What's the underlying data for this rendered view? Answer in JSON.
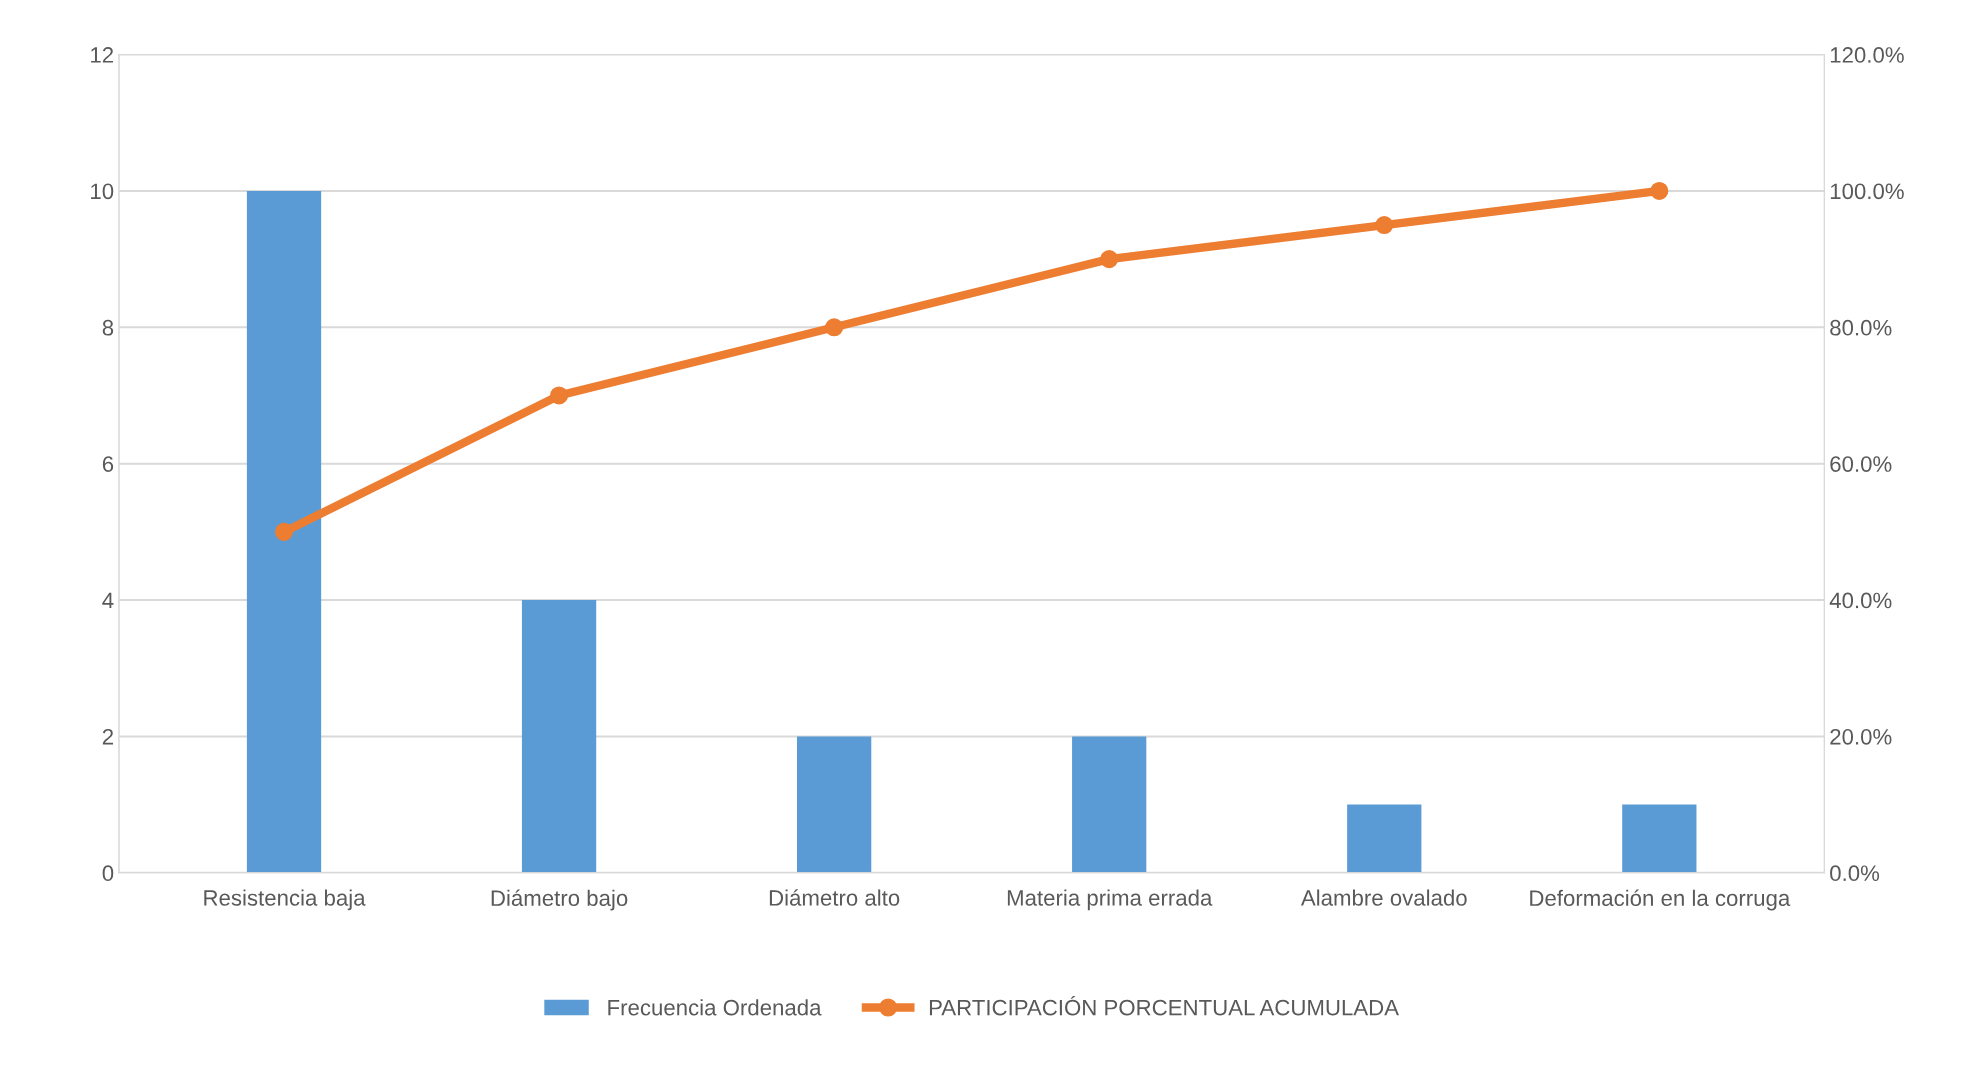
{
  "chart_data": {
    "type": "bar",
    "categories": [
      "Resistencia baja",
      "Diámetro bajo",
      "Diámetro alto",
      "Materia prima errada",
      "Alambre ovalado",
      "Deformación en la corruga"
    ],
    "series": [
      {
        "name": "Frecuencia Ordenada",
        "color": "#5b9bd5",
        "values": [
          10,
          4,
          2,
          2,
          1,
          1
        ]
      },
      {
        "name": "PARTICIPACIÓN PORCENTUAL ACUMULADA",
        "type": "line",
        "axis": "y2",
        "color": "#ed7d31",
        "marker": "circle",
        "values": [
          50,
          70,
          80,
          90,
          95,
          100
        ]
      }
    ],
    "ylim": [
      0,
      12
    ],
    "yticks": [
      0,
      2,
      4,
      6,
      8,
      10,
      12
    ],
    "y2lim": [
      0,
      120
    ],
    "y2ticks": [
      {
        "value": 0,
        "label": "0.0%"
      },
      {
        "value": 20,
        "label": "20.0%"
      },
      {
        "value": 40,
        "label": "40.0%"
      },
      {
        "value": 60,
        "label": "60.0%"
      },
      {
        "value": 80,
        "label": "80.0%"
      },
      {
        "value": 100,
        "label": "100.0%"
      },
      {
        "value": 120,
        "label": "120.0%"
      }
    ],
    "grid": "y",
    "legend": "bottom"
  }
}
